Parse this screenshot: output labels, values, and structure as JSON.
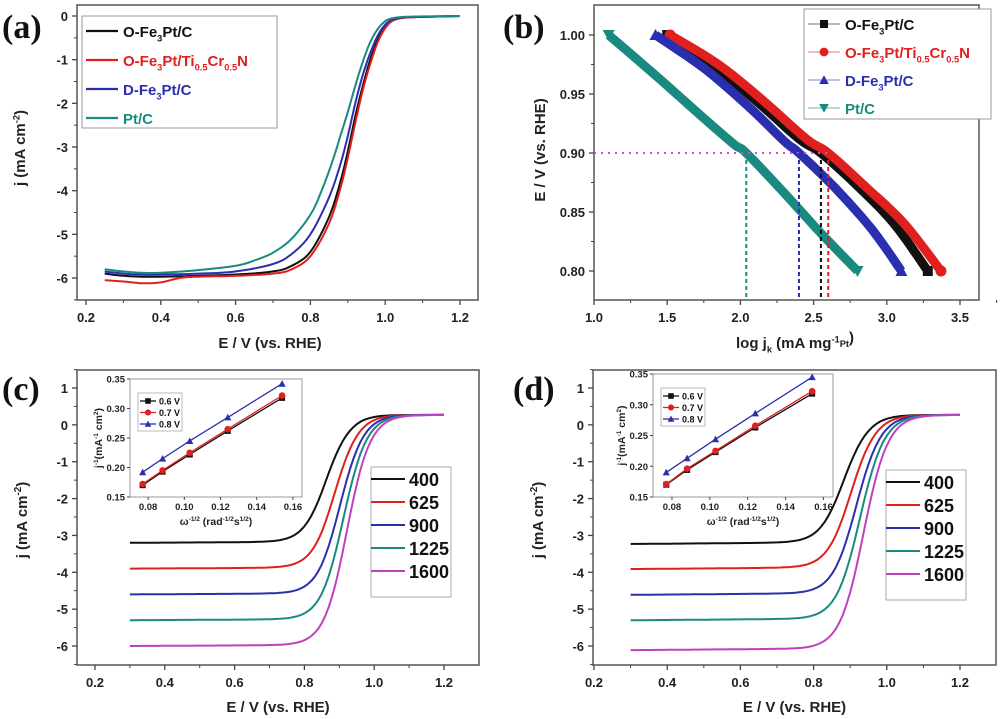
{
  "chart_data": [
    {
      "panel": "(a)",
      "type": "line",
      "xlabel": "E / V (vs. RHE)",
      "ylabel": "j (mA cm⁻²)",
      "xlim": [
        0.15,
        1.25
      ],
      "ylim": [
        -6.5,
        0.25
      ],
      "xticks": [
        0.2,
        0.4,
        0.6,
        0.8,
        1.0,
        1.2
      ],
      "yticks": [
        0,
        -1,
        -2,
        -3,
        -4,
        -5,
        -6
      ],
      "legend_position": "top-left",
      "series": [
        {
          "name": "O-Fe3Pt/C",
          "label_parts": [
            "O-Fe",
            "3",
            "Pt/C"
          ],
          "color": "#111111",
          "x": [
            0.25,
            0.3,
            0.35,
            0.4,
            0.5,
            0.6,
            0.7,
            0.75,
            0.8,
            0.85,
            0.88,
            0.9,
            0.92,
            0.94,
            0.96,
            0.98,
            1.0,
            1.02,
            1.05,
            1.1,
            1.2
          ],
          "y": [
            -5.9,
            -5.95,
            -5.97,
            -5.97,
            -5.95,
            -5.92,
            -5.85,
            -5.72,
            -5.4,
            -4.6,
            -3.8,
            -3.1,
            -2.3,
            -1.6,
            -1.0,
            -0.55,
            -0.25,
            -0.1,
            -0.04,
            -0.02,
            0
          ]
        },
        {
          "name": "O-Fe3Pt/Ti0.5Cr0.5N",
          "label_parts": [
            "O-Fe",
            "3",
            "Pt/Ti",
            "0.5",
            "Cr",
            "0.5",
            "N"
          ],
          "color": "#e0201e",
          "x": [
            0.25,
            0.3,
            0.35,
            0.4,
            0.45,
            0.5,
            0.6,
            0.7,
            0.75,
            0.8,
            0.85,
            0.88,
            0.9,
            0.92,
            0.94,
            0.96,
            0.98,
            1.0,
            1.02,
            1.05,
            1.1,
            1.2
          ],
          "y": [
            -6.05,
            -6.08,
            -6.12,
            -6.1,
            -6.0,
            -5.97,
            -5.95,
            -5.9,
            -5.8,
            -5.5,
            -4.75,
            -3.95,
            -3.25,
            -2.45,
            -1.7,
            -1.1,
            -0.6,
            -0.28,
            -0.11,
            -0.04,
            -0.02,
            0
          ]
        },
        {
          "name": "D-Fe3Pt/C",
          "label_parts": [
            "D-Fe",
            "3",
            "Pt/C"
          ],
          "color": "#2a2fb0",
          "x": [
            0.25,
            0.3,
            0.35,
            0.4,
            0.5,
            0.6,
            0.7,
            0.75,
            0.8,
            0.85,
            0.88,
            0.9,
            0.92,
            0.94,
            0.96,
            0.98,
            1.0,
            1.02,
            1.05,
            1.1,
            1.2
          ],
          "y": [
            -5.85,
            -5.9,
            -5.92,
            -5.92,
            -5.9,
            -5.85,
            -5.68,
            -5.45,
            -5.0,
            -4.15,
            -3.4,
            -2.75,
            -2.0,
            -1.35,
            -0.85,
            -0.45,
            -0.2,
            -0.08,
            -0.03,
            -0.02,
            0
          ]
        },
        {
          "name": "Pt/C",
          "label_parts": [
            "Pt/C"
          ],
          "color": "#1a8a80",
          "x": [
            0.25,
            0.3,
            0.35,
            0.4,
            0.5,
            0.6,
            0.65,
            0.7,
            0.75,
            0.8,
            0.83,
            0.86,
            0.88,
            0.9,
            0.92,
            0.94,
            0.96,
            0.98,
            1.0,
            1.02,
            1.05,
            1.1,
            1.2
          ],
          "y": [
            -5.8,
            -5.85,
            -5.88,
            -5.88,
            -5.82,
            -5.72,
            -5.6,
            -5.42,
            -5.1,
            -4.55,
            -4.0,
            -3.3,
            -2.75,
            -2.2,
            -1.6,
            -1.05,
            -0.6,
            -0.3,
            -0.12,
            -0.05,
            -0.02,
            -0.01,
            0
          ]
        }
      ]
    },
    {
      "panel": "(b)",
      "type": "scatter",
      "xlabel": "log jₖ (mA mg⁻¹ Pt)",
      "ylabel": "E / V (vs. RHE)",
      "xlim": [
        1.0,
        3.75
      ],
      "ylim": [
        0.775,
        1.025
      ],
      "xticks": [
        1.0,
        1.5,
        2.0,
        2.5,
        3.0,
        3.5
      ],
      "yticks": [
        0.8,
        0.85,
        0.9,
        0.95,
        1.0
      ],
      "legend_position": "top-right",
      "reference_line": {
        "E": 0.9,
        "color": "#d050d0"
      },
      "series": [
        {
          "name": "O-Fe3Pt/C",
          "label_parts": [
            "O-Fe",
            "3",
            "Pt/C"
          ],
          "marker": "square",
          "color": "#111111",
          "x": [
            1.5,
            1.8,
            2.1,
            2.4,
            2.55,
            2.8,
            3.05,
            3.28
          ],
          "y": [
            1.0,
            0.975,
            0.945,
            0.912,
            0.9,
            0.872,
            0.84,
            0.8
          ],
          "x_at_0.9V": 2.55
        },
        {
          "name": "O-Fe3Pt/Ti0.5Cr0.5N",
          "label_parts": [
            "O-Fe",
            "3",
            "Pt/Ti",
            "0.5",
            "Cr",
            "0.5",
            "N"
          ],
          "marker": "circle",
          "color": "#e0201e",
          "x": [
            1.52,
            1.85,
            2.15,
            2.45,
            2.6,
            2.85,
            3.12,
            3.37
          ],
          "y": [
            1.0,
            0.975,
            0.945,
            0.912,
            0.9,
            0.872,
            0.84,
            0.8
          ],
          "x_at_0.9V": 2.6
        },
        {
          "name": "D-Fe3Pt/C",
          "label_parts": [
            "D-Fe",
            "3",
            "Pt/C"
          ],
          "marker": "triangle-up",
          "color": "#2a2fb0",
          "x": [
            1.42,
            1.75,
            2.05,
            2.3,
            2.4,
            2.65,
            2.9,
            3.1
          ],
          "y": [
            1.0,
            0.972,
            0.94,
            0.91,
            0.9,
            0.87,
            0.835,
            0.8
          ],
          "x_at_0.9V": 2.4
        },
        {
          "name": "Pt/C",
          "label_parts": [
            "Pt/C"
          ],
          "marker": "triangle-down",
          "color": "#1a8a80",
          "x": [
            1.1,
            1.4,
            1.7,
            1.95,
            2.04,
            2.3,
            2.55,
            2.8
          ],
          "y": [
            1.0,
            0.968,
            0.935,
            0.908,
            0.9,
            0.866,
            0.832,
            0.8
          ],
          "x_at_0.9V": 2.04
        }
      ]
    },
    {
      "panel": "(c)",
      "type": "line",
      "xlabel": "E / V (vs. RHE)",
      "ylabel": "j (mA cm⁻²)",
      "xlim": [
        0.15,
        1.25
      ],
      "ylim": [
        -6.5,
        1.5
      ],
      "xticks": [
        0.2,
        0.4,
        0.6,
        0.8,
        1.0,
        1.2
      ],
      "yticks": [
        1,
        0,
        -1,
        -2,
        -3,
        -4,
        -5,
        -6
      ],
      "legend_position": "right",
      "legend_title": "",
      "series": [
        {
          "name": "400",
          "color": "#111111",
          "plateau": -3.18,
          "half": 0.86
        },
        {
          "name": "625",
          "color": "#e0201e",
          "plateau": -3.88,
          "half": 0.885
        },
        {
          "name": "900",
          "color": "#2a2fb0",
          "plateau": -4.58,
          "half": 0.9
        },
        {
          "name": "1225",
          "color": "#1a8a80",
          "plateau": -5.28,
          "half": 0.91
        },
        {
          "name": "1600",
          "color": "#c040c0",
          "plateau": -5.98,
          "half": 0.92
        }
      ],
      "inset": {
        "type": "line",
        "xlabel": "ω⁻¹ᐟ² (rad⁻¹ᐟ²s¹ᐟ²)",
        "xlabel_parts": [
          "ω",
          "-1/2",
          " (rad",
          "-1/2",
          "s",
          "1/2",
          ")"
        ],
        "ylabel_parts": [
          "j",
          "-1",
          "(mA",
          "-1",
          " cm",
          "2",
          ")"
        ],
        "xlim": [
          0.07,
          0.165
        ],
        "ylim": [
          0.15,
          0.35
        ],
        "xticks": [
          0.08,
          0.1,
          0.12,
          0.14,
          0.16
        ],
        "yticks": [
          0.15,
          0.2,
          0.25,
          0.3,
          0.35
        ],
        "legend_position": "top-left",
        "x": [
          0.077,
          0.088,
          0.103,
          0.124,
          0.154
        ],
        "series": [
          {
            "name": "0.6 V",
            "marker": "square",
            "color": "#111111",
            "y": [
              0.17,
              0.193,
              0.222,
              0.262,
              0.318
            ]
          },
          {
            "name": "0.7 V",
            "marker": "circle",
            "color": "#e0201e",
            "y": [
              0.172,
              0.195,
              0.225,
              0.265,
              0.322
            ]
          },
          {
            "name": "0.8 V",
            "marker": "triangle-up",
            "color": "#2a2fb0",
            "y": [
              0.192,
              0.215,
              0.245,
              0.285,
              0.342
            ]
          }
        ]
      }
    },
    {
      "panel": "(d)",
      "type": "line",
      "xlabel": "E / V (vs. RHE)",
      "ylabel": "j (mA cm⁻²)",
      "xlim": [
        0.2,
        1.3
      ],
      "ylim": [
        -6.5,
        1.5
      ],
      "xticks": [
        0.2,
        0.4,
        0.6,
        0.8,
        1.0,
        1.2
      ],
      "yticks": [
        1,
        0,
        -1,
        -2,
        -3,
        -4,
        -5,
        -6
      ],
      "legend_position": "right",
      "series": [
        {
          "name": "400",
          "color": "#111111",
          "plateau": -3.2,
          "half": 0.88
        },
        {
          "name": "625",
          "color": "#e0201e",
          "plateau": -3.88,
          "half": 0.9
        },
        {
          "name": "900",
          "color": "#2a2fb0",
          "plateau": -4.58,
          "half": 0.915
        },
        {
          "name": "1225",
          "color": "#1a8a80",
          "plateau": -5.27,
          "half": 0.925
        },
        {
          "name": "1600",
          "color": "#c040c0",
          "plateau": -6.08,
          "half": 0.935
        }
      ],
      "inset": {
        "type": "line",
        "xlabel_parts": [
          "ω",
          "-1/2",
          " (rad",
          "-1/2",
          "s",
          "1/2",
          ")"
        ],
        "ylabel_parts": [
          "j",
          "-1",
          "(mA",
          "-1",
          " cm",
          "2",
          ")"
        ],
        "xlim": [
          0.07,
          0.165
        ],
        "ylim": [
          0.15,
          0.35
        ],
        "xticks": [
          0.08,
          0.1,
          0.12,
          0.14,
          0.16
        ],
        "yticks": [
          0.15,
          0.2,
          0.25,
          0.3,
          0.35
        ],
        "legend_position": "top-left",
        "x": [
          0.077,
          0.088,
          0.103,
          0.124,
          0.154
        ],
        "series": [
          {
            "name": "0.6 V",
            "marker": "square",
            "color": "#111111",
            "y": [
              0.17,
              0.194,
              0.223,
              0.263,
              0.318
            ]
          },
          {
            "name": "0.7 V",
            "marker": "circle",
            "color": "#e0201e",
            "y": [
              0.171,
              0.196,
              0.225,
              0.266,
              0.322
            ]
          },
          {
            "name": "0.8 V",
            "marker": "triangle-up",
            "color": "#2a2fb0",
            "y": [
              0.19,
              0.213,
              0.244,
              0.286,
              0.345
            ]
          }
        ]
      }
    }
  ]
}
